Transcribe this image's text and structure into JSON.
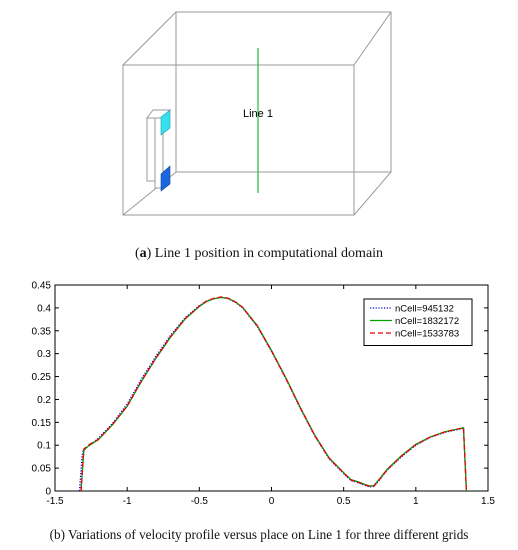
{
  "figure_a": {
    "line_label": "Line 1",
    "caption_tag": "a",
    "caption_text": " Line 1 position in computational domain",
    "colors": {
      "box": "#9a9a9a",
      "line": "#22bb44",
      "cyan_block": "#33e0ee",
      "blue_block": "#1a66dd"
    }
  },
  "figure_b": {
    "caption_tag": "b",
    "caption_text": " Variations of velocity profile versus place on Line 1 for three different grids"
  },
  "chart_data": {
    "type": "line",
    "title": "",
    "xlabel": "",
    "ylabel": "",
    "xlim": [
      -1.5,
      1.5
    ],
    "ylim": [
      0,
      0.45
    ],
    "xticks": [
      -1.5,
      -1,
      -0.5,
      0,
      0.5,
      1,
      1.5
    ],
    "xtick_labels": [
      "-1.5",
      "-1",
      "-0.5",
      "0",
      "0.5",
      "1",
      "1.5"
    ],
    "yticks": [
      0,
      0.05,
      0.1,
      0.15,
      0.2,
      0.25,
      0.3,
      0.35,
      0.4,
      0.45
    ],
    "ytick_labels": [
      "0",
      "0.05",
      "0.1",
      "0.15",
      "0.2",
      "0.25",
      "0.3",
      "0.35",
      "0.4",
      "0.45"
    ],
    "grid": false,
    "legend_position": "top-right",
    "series": [
      {
        "name": "nCell=945132",
        "color": "#0000cc",
        "dash": "dotted",
        "x": [
          -1.33,
          -1.31,
          -1.28,
          -1.2,
          -1.1,
          -1.0,
          -0.9,
          -0.8,
          -0.7,
          -0.6,
          -0.5,
          -0.45,
          -0.4,
          -0.35,
          -0.3,
          -0.25,
          -0.2,
          -0.1,
          0.0,
          0.1,
          0.2,
          0.3,
          0.4,
          0.5,
          0.55,
          0.6,
          0.65,
          0.68,
          0.71,
          0.75,
          0.8,
          0.9,
          1.0,
          1.1,
          1.2,
          1.3,
          1.33,
          1.35
        ],
        "y": [
          0.0,
          0.085,
          0.095,
          0.115,
          0.148,
          0.19,
          0.245,
          0.295,
          0.34,
          0.378,
          0.405,
          0.415,
          0.42,
          0.423,
          0.42,
          0.412,
          0.4,
          0.36,
          0.305,
          0.245,
          0.18,
          0.12,
          0.07,
          0.038,
          0.023,
          0.018,
          0.012,
          0.009,
          0.01,
          0.025,
          0.045,
          0.075,
          0.1,
          0.117,
          0.128,
          0.135,
          0.137,
          0.0
        ]
      },
      {
        "name": "nCell=1832172",
        "color": "#00a000",
        "dash": "solid",
        "x": [
          -1.32,
          -1.3,
          -1.27,
          -1.2,
          -1.1,
          -1.0,
          -0.9,
          -0.8,
          -0.7,
          -0.6,
          -0.5,
          -0.45,
          -0.4,
          -0.35,
          -0.3,
          -0.25,
          -0.2,
          -0.1,
          0.0,
          0.1,
          0.2,
          0.3,
          0.4,
          0.5,
          0.55,
          0.6,
          0.65,
          0.68,
          0.71,
          0.75,
          0.8,
          0.9,
          1.0,
          1.1,
          1.2,
          1.3,
          1.33,
          1.35
        ],
        "y": [
          0.0,
          0.09,
          0.098,
          0.112,
          0.145,
          0.185,
          0.24,
          0.29,
          0.336,
          0.375,
          0.403,
          0.414,
          0.42,
          0.423,
          0.421,
          0.413,
          0.401,
          0.362,
          0.307,
          0.247,
          0.182,
          0.122,
          0.072,
          0.04,
          0.025,
          0.02,
          0.014,
          0.011,
          0.012,
          0.027,
          0.047,
          0.077,
          0.102,
          0.118,
          0.129,
          0.136,
          0.138,
          0.0
        ]
      },
      {
        "name": "nCell=1533783",
        "color": "#ee0000",
        "dash": "dashed",
        "x": [
          -1.32,
          -1.3,
          -1.27,
          -1.2,
          -1.1,
          -1.0,
          -0.9,
          -0.8,
          -0.7,
          -0.6,
          -0.5,
          -0.45,
          -0.4,
          -0.35,
          -0.3,
          -0.25,
          -0.2,
          -0.1,
          0.0,
          0.1,
          0.2,
          0.3,
          0.4,
          0.5,
          0.55,
          0.6,
          0.65,
          0.68,
          0.71,
          0.75,
          0.8,
          0.9,
          1.0,
          1.1,
          1.2,
          1.3,
          1.33,
          1.35
        ],
        "y": [
          0.0,
          0.092,
          0.1,
          0.113,
          0.146,
          0.186,
          0.241,
          0.291,
          0.337,
          0.376,
          0.404,
          0.415,
          0.421,
          0.424,
          0.421,
          0.413,
          0.401,
          0.361,
          0.306,
          0.246,
          0.181,
          0.121,
          0.071,
          0.039,
          0.024,
          0.019,
          0.013,
          0.01,
          0.011,
          0.026,
          0.046,
          0.076,
          0.101,
          0.118,
          0.129,
          0.136,
          0.138,
          0.0
        ]
      }
    ]
  }
}
